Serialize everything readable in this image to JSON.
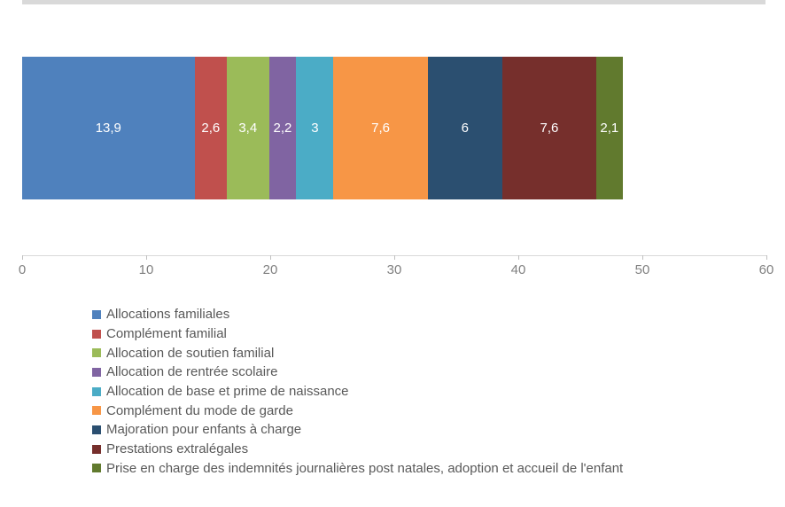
{
  "page": {
    "top_strip_color": "#d9d9d9",
    "background_color": "#ffffff",
    "axis_line_color": "#d9d9d9",
    "axis_label_color": "#808080",
    "legend_text_color": "#595959",
    "value_label_color": "#ffffff"
  },
  "chart_data": {
    "type": "bar",
    "subtype": "horizontal-stacked",
    "title": "",
    "xlabel": "",
    "ylabel": "",
    "xlim": [
      0,
      60
    ],
    "x_ticks": [
      0,
      10,
      20,
      30,
      40,
      50,
      60
    ],
    "grid": false,
    "legend_position": "bottom-left",
    "series": [
      {
        "name": "Allocations familiales",
        "value": 13.9,
        "label": "13,9",
        "color": "#4f81bd"
      },
      {
        "name": "Complément familial",
        "value": 2.6,
        "label": "2,6",
        "color": "#c0504d"
      },
      {
        "name": "Allocation de soutien familial",
        "value": 3.4,
        "label": "3,4",
        "color": "#9bbb59"
      },
      {
        "name": "Allocation de rentrée scolaire",
        "value": 2.2,
        "label": "2,2",
        "color": "#8064a2"
      },
      {
        "name": "Allocation de base et prime de naissance",
        "value": 3,
        "label": "3",
        "color": "#4bacc6"
      },
      {
        "name": "Complément du mode de garde",
        "value": 7.6,
        "label": "7,6",
        "color": "#f79646"
      },
      {
        "name": "Majoration pour enfants à charge",
        "value": 6,
        "label": "6",
        "color": "#2b4f70"
      },
      {
        "name": "Prestations extralégales",
        "value": 7.6,
        "label": "7,6",
        "color": "#762f2c"
      },
      {
        "name": "Prise en charge des indemnités journalières post natales, adoption et accueil de l'enfant",
        "value": 2.1,
        "label": "2,1",
        "color": "#617a2e"
      }
    ]
  }
}
